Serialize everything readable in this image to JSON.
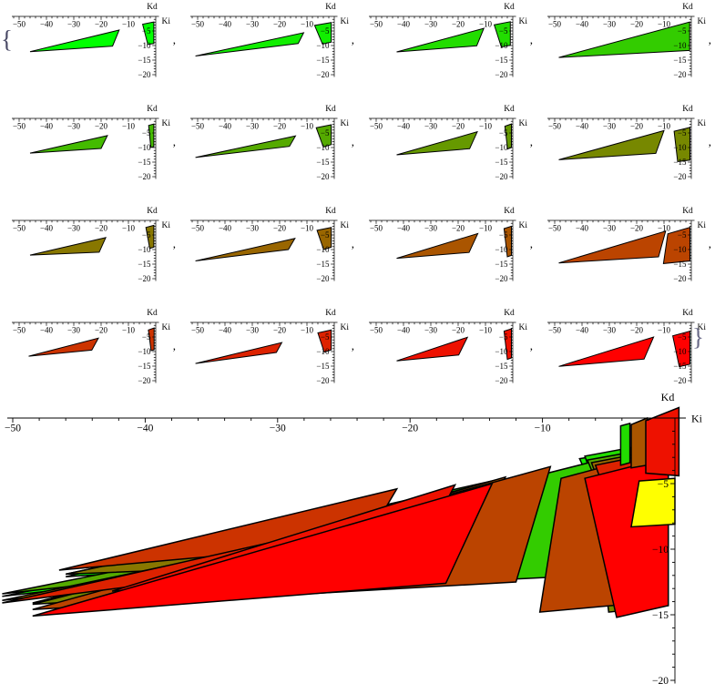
{
  "figure": {
    "open_brace": "{",
    "close_brace": "}",
    "separator": ","
  },
  "chart_data": {
    "type": "region-grid",
    "xlabel": "Ki",
    "ylabel": "Kd",
    "xlim": [
      -52.5,
      1
    ],
    "ylim": [
      -20,
      1
    ],
    "x_ticks": [
      -50,
      -40,
      -30,
      -20,
      -10
    ],
    "y_ticks": [
      -5,
      -10,
      -15,
      -20
    ],
    "x_minor_step": 2,
    "y_minor_step": 1,
    "axis_color": "#000000",
    "subplots": [
      {
        "row": 1,
        "col": 1,
        "color": "#00FF00",
        "regions": [
          [
            [
              -46,
              -12.1
            ],
            [
              -13.4,
              -4.7
            ],
            [
              -15.8,
              -10.2
            ]
          ],
          [
            [
              -4.8,
              -2.7
            ],
            [
              -0.7,
              -1.9
            ],
            [
              -0.7,
              -9.3
            ],
            [
              -2.9,
              -9.6
            ]
          ]
        ]
      },
      {
        "row": 1,
        "col": 2,
        "color": "#11EE00",
        "regions": [
          [
            [
              -50.8,
              -13.6
            ],
            [
              -11.2,
              -5.6
            ],
            [
              -13.2,
              -9.3
            ]
          ],
          [
            [
              -7.2,
              -3.1
            ],
            [
              -1.1,
              -2.1
            ],
            [
              -1.1,
              -8.8
            ],
            [
              -4.3,
              -9.5
            ]
          ]
        ]
      },
      {
        "row": 1,
        "col": 3,
        "color": "#22DD00",
        "regions": [
          [
            [
              -42.5,
              -12.2
            ],
            [
              -10.6,
              -4.1
            ],
            [
              -13.2,
              -10.1
            ]
          ],
          [
            [
              -6.8,
              -2.9
            ],
            [
              -0.9,
              -1.8
            ],
            [
              -0.9,
              -9.9
            ],
            [
              -4.2,
              -10.5
            ]
          ]
        ]
      },
      {
        "row": 1,
        "col": 4,
        "color": "#33CC00",
        "regions": [
          [
            [
              -48.5,
              -14.1
            ],
            [
              -0.6,
              -1.9
            ],
            [
              -0.6,
              -11.7
            ]
          ]
        ]
      },
      {
        "row": 2,
        "col": 1,
        "color": "#44BB00",
        "regions": [
          [
            [
              -46,
              -11.9
            ],
            [
              -17.7,
              -5.9
            ],
            [
              -20,
              -10.3
            ]
          ],
          [
            [
              -2.6,
              -2.4
            ],
            [
              -0.7,
              -1.9
            ],
            [
              -0.7,
              -9.7
            ],
            [
              -1.8,
              -10
            ]
          ]
        ]
      },
      {
        "row": 2,
        "col": 2,
        "color": "#55AA00",
        "regions": [
          [
            [
              -50.8,
              -13.4
            ],
            [
              -14.2,
              -6
            ],
            [
              -16.4,
              -9.6
            ]
          ],
          [
            [
              -6.6,
              -3.2
            ],
            [
              -1.1,
              -2.2
            ],
            [
              -1.1,
              -9
            ],
            [
              -4,
              -9.8
            ]
          ]
        ]
      },
      {
        "row": 2,
        "col": 3,
        "color": "#669900",
        "regions": [
          [
            [
              -42.5,
              -12.5
            ],
            [
              -13,
              -4.6
            ],
            [
              -15.8,
              -10.4
            ]
          ],
          [
            [
              -2.9,
              -2.7
            ],
            [
              -0.5,
              -1.9
            ],
            [
              -0.5,
              -10
            ],
            [
              -1.9,
              -10.5
            ]
          ]
        ]
      },
      {
        "row": 2,
        "col": 4,
        "color": "#778800",
        "regions": [
          [
            [
              -48.5,
              -14.2
            ],
            [
              -10,
              -4.2
            ],
            [
              -13,
              -12
            ]
          ],
          [
            [
              -6.3,
              -4.4
            ],
            [
              -0.5,
              -3.1
            ],
            [
              -0.5,
              -14.3
            ],
            [
              -5,
              -14.8
            ]
          ]
        ]
      },
      {
        "row": 3,
        "col": 1,
        "color": "#887700",
        "regions": [
          [
            [
              -46,
              -11.9
            ],
            [
              -18.3,
              -5.9
            ],
            [
              -20.7,
              -10.9
            ]
          ],
          [
            [
              -3.6,
              -2.4
            ],
            [
              -0.7,
              -1.7
            ],
            [
              -0.7,
              -9.2
            ],
            [
              -2.2,
              -9.6
            ]
          ]
        ]
      },
      {
        "row": 3,
        "col": 2,
        "color": "#996600",
        "regions": [
          [
            [
              -50.8,
              -13.9
            ],
            [
              -14.4,
              -6.2
            ],
            [
              -16.8,
              -10
            ]
          ],
          [
            [
              -6.3,
              -3.4
            ],
            [
              -1.1,
              -2.4
            ],
            [
              -1.1,
              -9.2
            ],
            [
              -3.9,
              -10
            ]
          ]
        ]
      },
      {
        "row": 3,
        "col": 3,
        "color": "#AA5500",
        "regions": [
          [
            [
              -42.5,
              -13
            ],
            [
              -12.8,
              -4.5
            ],
            [
              -16,
              -11
            ]
          ],
          [
            [
              -3.2,
              -2.8
            ],
            [
              -0.5,
              -2
            ],
            [
              -0.5,
              -12
            ],
            [
              -2,
              -12.5
            ]
          ]
        ]
      },
      {
        "row": 3,
        "col": 4,
        "color": "#BB4400",
        "regions": [
          [
            [
              -48.5,
              -14.6
            ],
            [
              -9.4,
              -3.7
            ],
            [
              -12,
              -12.5
            ]
          ],
          [
            [
              -8.6,
              -4.6
            ],
            [
              -0.5,
              -2.4
            ],
            [
              -0.5,
              -13.9
            ],
            [
              -10.2,
              -14.8
            ]
          ]
        ]
      },
      {
        "row": 4,
        "col": 1,
        "color": "#CC3300",
        "regions": [
          [
            [
              -46.5,
              -11.6
            ],
            [
              -21,
              -5.4
            ],
            [
              -23.4,
              -9.5
            ]
          ],
          [
            [
              -2.7,
              -2.6
            ],
            [
              -0.6,
              -1.9
            ],
            [
              -0.6,
              -9.4
            ],
            [
              -1.7,
              -9.7
            ]
          ]
        ]
      },
      {
        "row": 4,
        "col": 2,
        "color": "#DD2200",
        "regions": [
          [
            [
              -50.8,
              -14.1
            ],
            [
              -19.2,
              -6.9
            ],
            [
              -21.2,
              -10.3
            ]
          ],
          [
            [
              -6,
              -3.6
            ],
            [
              -1.1,
              -2.6
            ],
            [
              -1.1,
              -9.4
            ],
            [
              -3.7,
              -10.2
            ]
          ]
        ]
      },
      {
        "row": 4,
        "col": 3,
        "color": "#EE1100",
        "regions": [
          [
            [
              -42.5,
              -13.2
            ],
            [
              -16.6,
              -5.1
            ],
            [
              -19.8,
              -11.2
            ]
          ],
          [
            [
              -3.2,
              -3
            ],
            [
              -0.5,
              -2.2
            ],
            [
              -0.5,
              -12.2
            ],
            [
              -2,
              -12.7
            ]
          ]
        ]
      },
      {
        "row": 4,
        "col": 4,
        "color": "#FF0000",
        "regions": [
          [
            [
              -48.5,
              -15.1
            ],
            [
              -13.8,
              -5
            ],
            [
              -17.3,
              -12.6
            ]
          ],
          [
            [
              -6.8,
              -4.6
            ],
            [
              -0.5,
              -3
            ],
            [
              -0.5,
              -14.3
            ],
            [
              -4.4,
              -15.2
            ]
          ]
        ]
      }
    ],
    "combined": {
      "overlay_of_subplots": "all",
      "extras": [
        {
          "color": "#22DD00",
          "points": [
            [
              -4.1,
              -0.6
            ],
            [
              -3.4,
              -0.4
            ],
            [
              -3.4,
              -3.4
            ],
            [
              -4.1,
              -3.6
            ]
          ]
        },
        {
          "color": "#AA5500",
          "points": [
            [
              -3.3,
              -0.5
            ],
            [
              -2.1,
              0
            ],
            [
              -2.1,
              -3.6
            ],
            [
              -3.3,
              -3.8
            ]
          ]
        },
        {
          "color": "#EE1100",
          "points": [
            [
              -2.2,
              -0.2
            ],
            [
              0.3,
              0.8
            ],
            [
              0.3,
              -4.4
            ],
            [
              -2.2,
              -4.2
            ]
          ]
        }
      ],
      "highlight": {
        "color": "#FFFF00",
        "points": [
          [
            -2.7,
            -4.8
          ],
          [
            0,
            -4.6
          ],
          [
            0,
            -8.1
          ],
          [
            -3.3,
            -8.3
          ]
        ]
      }
    }
  }
}
